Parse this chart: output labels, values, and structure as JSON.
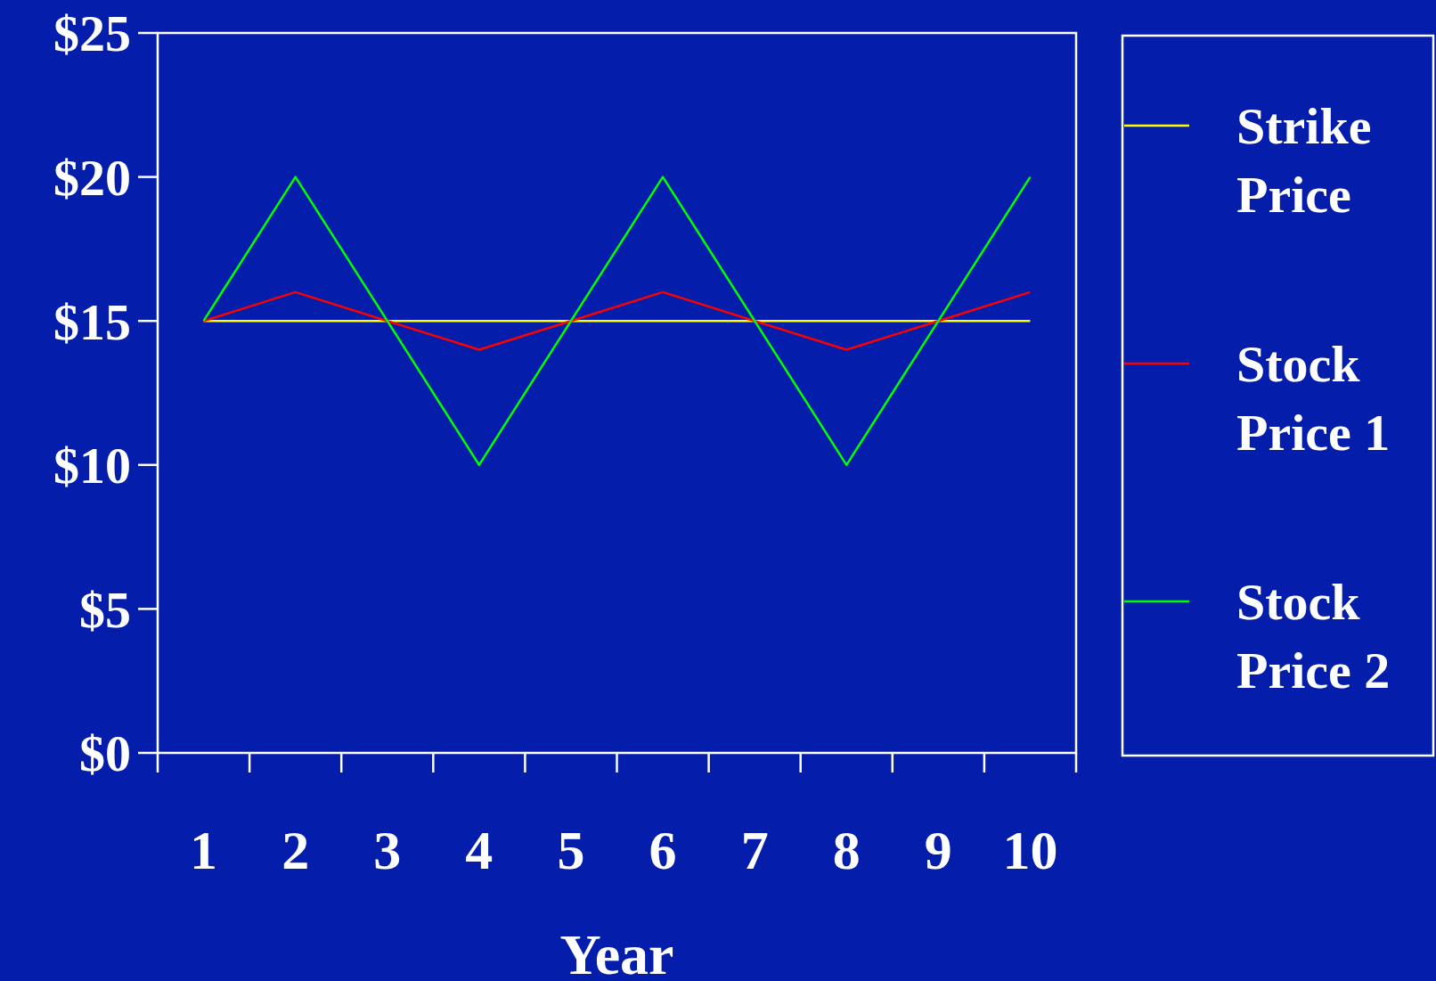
{
  "chart_data": {
    "type": "line",
    "xlabel": "Year",
    "categories": [
      "1",
      "2",
      "3",
      "4",
      "5",
      "6",
      "7",
      "8",
      "9",
      "10"
    ],
    "series": [
      {
        "name": "Strike Price",
        "color": "#ffff00",
        "values": [
          15,
          15,
          15,
          15,
          15,
          15,
          15,
          15,
          15,
          15
        ]
      },
      {
        "name": "Stock Price 1",
        "color": "#ff0000",
        "values": [
          15,
          16,
          15,
          14,
          15,
          16,
          15,
          14,
          15,
          16
        ]
      },
      {
        "name": "Stock Price 2",
        "color": "#00ff00",
        "values": [
          15,
          20,
          15,
          10,
          15,
          20,
          15,
          10,
          15,
          20
        ]
      }
    ],
    "ylim": [
      0,
      25
    ],
    "yticks": [
      {
        "value": 0,
        "label": "$0"
      },
      {
        "value": 5,
        "label": "$5"
      },
      {
        "value": 10,
        "label": "$10"
      },
      {
        "value": 15,
        "label": "$15"
      },
      {
        "value": 20,
        "label": "$20"
      },
      {
        "value": 25,
        "label": "$25"
      }
    ],
    "grid": false,
    "legend": "right"
  }
}
